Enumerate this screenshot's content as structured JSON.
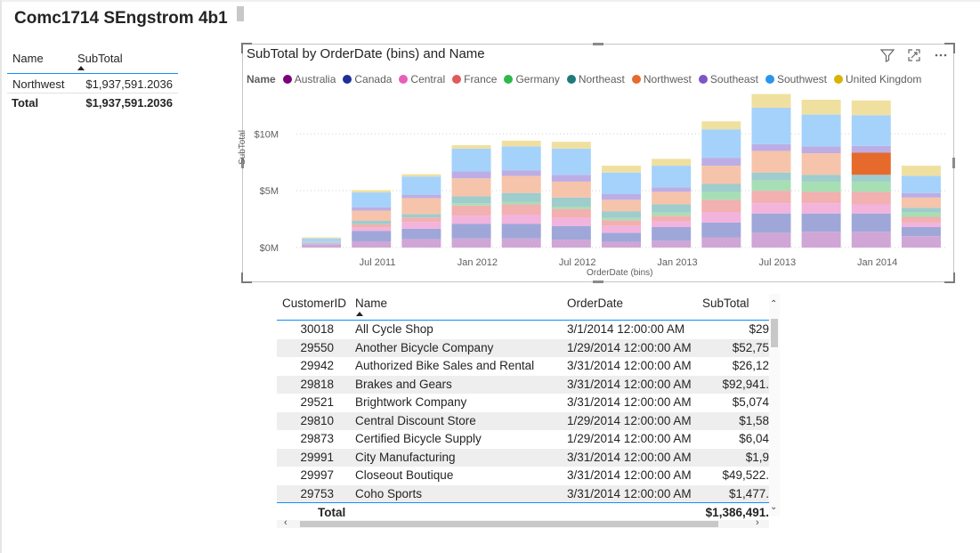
{
  "page": {
    "title": "Comc1714 SEngstrom 4b1"
  },
  "summary_table": {
    "columns": [
      "Name",
      "SubTotal"
    ],
    "rows": [
      {
        "name": "Northwest",
        "subtotal": "$1,937,591.2036"
      }
    ],
    "total": {
      "label": "Total",
      "value": "$1,937,591.2036"
    }
  },
  "chart": {
    "title": "SubTotal by OrderDate (bins) and Name",
    "legend_title": "Name",
    "legend": [
      {
        "name": "Australia",
        "color": "#7a0177"
      },
      {
        "name": "Canada",
        "color": "#1f2f98"
      },
      {
        "name": "Central",
        "color": "#e65fb8"
      },
      {
        "name": "France",
        "color": "#e05a5a"
      },
      {
        "name": "Germany",
        "color": "#2fb84b"
      },
      {
        "name": "Northeast",
        "color": "#1f7a7a"
      },
      {
        "name": "Northwest",
        "color": "#e66a2c"
      },
      {
        "name": "Southeast",
        "color": "#7c55c7"
      },
      {
        "name": "Southwest",
        "color": "#2c95ea"
      },
      {
        "name": "United Kingdom",
        "color": "#d9b300"
      }
    ],
    "faded_colors": [
      "#cfa6d6",
      "#9fa7d9",
      "#f2b3dd",
      "#f2b0b0",
      "#a7dfb4",
      "#9fcccc",
      "#f6c4ab",
      "#bcaee5",
      "#a5d2fb",
      "#efe09f"
    ],
    "icons": [
      "filter-icon",
      "focus-mode-icon",
      "more-options-icon"
    ]
  },
  "chart_data": {
    "type": "bar",
    "stacked": true,
    "title": "SubTotal by OrderDate (bins) and Name",
    "xlabel": "OrderDate (bins)",
    "ylabel": "SubTotal",
    "y_ticks": [
      "$0M",
      "$5M",
      "$10M"
    ],
    "x_ticks": [
      "Jul 2011",
      "Jan 2012",
      "Jul 2012",
      "Jan 2013",
      "Jul 2013",
      "Jan 2014"
    ],
    "ylim": [
      0,
      13000000
    ],
    "grid": true,
    "legend_position": "top",
    "highlighted_series": "Northwest",
    "categories": [
      "Jun 2011",
      "Sep 2011",
      "Dec 2011",
      "Mar 2012",
      "Jun 2012",
      "Sep 2012",
      "Dec 2012",
      "Mar 2013",
      "Jun 2013",
      "Sep 2013",
      "Dec 2013",
      "Mar 2014",
      "Jun 2014"
    ],
    "series": [
      {
        "name": "Australia",
        "values": [
          0.25,
          0.55,
          0.75,
          0.8,
          0.8,
          0.7,
          0.5,
          0.6,
          0.9,
          1.3,
          1.4,
          1.4,
          1.0
        ]
      },
      {
        "name": "Canada",
        "values": [
          0.05,
          0.9,
          0.9,
          1.3,
          1.3,
          1.2,
          0.8,
          1.2,
          1.3,
          1.7,
          1.6,
          1.6,
          0.8
        ]
      },
      {
        "name": "Central",
        "values": [
          0.05,
          0.3,
          0.6,
          0.7,
          0.8,
          0.7,
          0.6,
          0.5,
          0.9,
          0.9,
          0.9,
          0.8,
          0.4
        ]
      },
      {
        "name": "France",
        "values": [
          0.0,
          0.3,
          0.4,
          0.9,
          0.9,
          0.8,
          0.5,
          0.5,
          1.1,
          1.1,
          1.0,
          1.1,
          0.5
        ]
      },
      {
        "name": "Germany",
        "values": [
          0.0,
          0.0,
          0.0,
          0.2,
          0.2,
          0.2,
          0.2,
          0.3,
          0.7,
          0.9,
          0.9,
          0.9,
          0.4
        ]
      },
      {
        "name": "Northeast",
        "values": [
          0.1,
          0.3,
          0.3,
          0.6,
          0.8,
          0.8,
          0.6,
          0.7,
          0.7,
          0.7,
          0.6,
          0.6,
          0.4
        ]
      },
      {
        "name": "Northwest",
        "values": [
          0.05,
          0.9,
          1.4,
          1.6,
          1.5,
          1.4,
          1.0,
          1.1,
          1.6,
          1.9,
          1.9,
          1.94,
          0.9
        ]
      },
      {
        "name": "Southeast",
        "values": [
          0.0,
          0.3,
          0.3,
          0.6,
          0.5,
          0.6,
          0.5,
          0.4,
          0.7,
          0.6,
          0.6,
          0.6,
          0.4
        ]
      },
      {
        "name": "Southwest",
        "values": [
          0.3,
          1.3,
          1.6,
          2.0,
          2.1,
          2.3,
          1.9,
          1.9,
          2.5,
          3.2,
          2.8,
          2.7,
          1.5
        ]
      },
      {
        "name": "United Kingdom",
        "values": [
          0.1,
          0.2,
          0.2,
          0.3,
          0.5,
          0.6,
          0.6,
          0.6,
          0.7,
          1.2,
          1.3,
          1.3,
          0.9
        ]
      }
    ]
  },
  "detail_table": {
    "columns": [
      "CustomerID",
      "Name",
      "OrderDate",
      "SubTotal"
    ],
    "rows": [
      {
        "id": "30018",
        "name": "All Cycle Shop",
        "date": "3/1/2014 12:00:00 AM",
        "subtotal": "$29"
      },
      {
        "id": "29550",
        "name": "Another Bicycle Company",
        "date": "1/29/2014 12:00:00 AM",
        "subtotal": "$52,75"
      },
      {
        "id": "29942",
        "name": "Authorized Bike Sales and Rental",
        "date": "3/31/2014 12:00:00 AM",
        "subtotal": "$26,12"
      },
      {
        "id": "29818",
        "name": "Brakes and Gears",
        "date": "3/31/2014 12:00:00 AM",
        "subtotal": "$92,941."
      },
      {
        "id": "29521",
        "name": "Brightwork Company",
        "date": "3/31/2014 12:00:00 AM",
        "subtotal": "$5,074"
      },
      {
        "id": "29810",
        "name": "Central Discount Store",
        "date": "1/29/2014 12:00:00 AM",
        "subtotal": "$1,58"
      },
      {
        "id": "29873",
        "name": "Certified Bicycle Supply",
        "date": "1/29/2014 12:00:00 AM",
        "subtotal": "$6,04"
      },
      {
        "id": "29991",
        "name": "City Manufacturing",
        "date": "3/31/2014 12:00:00 AM",
        "subtotal": "$1,9"
      },
      {
        "id": "29997",
        "name": "Closeout Boutique",
        "date": "3/31/2014 12:00:00 AM",
        "subtotal": "$49,522."
      },
      {
        "id": "29753",
        "name": "Coho Sports",
        "date": "3/31/2014 12:00:00 AM",
        "subtotal": "$1,477."
      }
    ],
    "total": {
      "label": "Total",
      "value": "$1,386,491."
    }
  }
}
